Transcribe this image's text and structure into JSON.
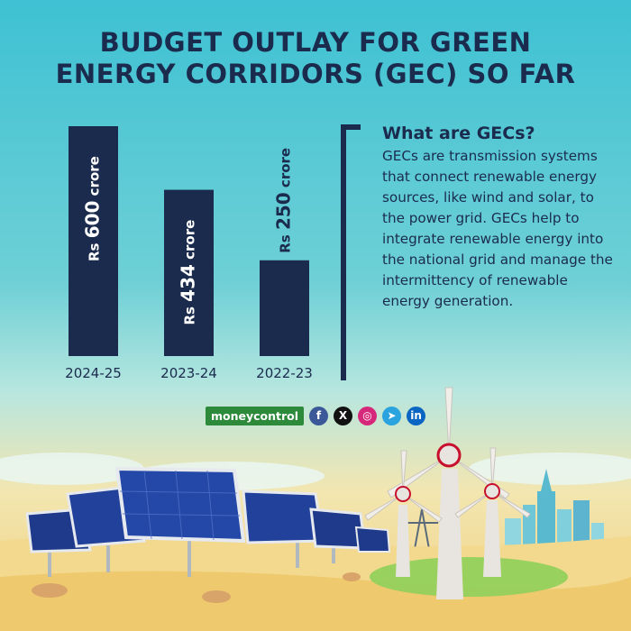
{
  "title_lines": [
    "BUDGET OUTLAY FOR GREEN",
    "ENERGY CORRIDORS (GEC) SO FAR"
  ],
  "chart_data": {
    "type": "bar",
    "categories": [
      "2024-25",
      "2023-24",
      "2022-23"
    ],
    "values": [
      600,
      434,
      250
    ],
    "value_labels": [
      "Rs 600 crore",
      "Rs 434 crore",
      "Rs 250 crore"
    ],
    "label_parts": [
      {
        "prefix": "Rs ",
        "number": "600",
        "suffix": " crore"
      },
      {
        "prefix": "Rs ",
        "number": "434",
        "suffix": " crore"
      },
      {
        "prefix": "Rs ",
        "number": "250",
        "suffix": " crore"
      }
    ],
    "bar_color": "#1b2b4d"
  },
  "info": {
    "heading": "What are GECs?",
    "body": "GECs are transmission systems that connect renewable energy sources, like wind and solar, to the power grid. GECs help to integrate renewable energy into the national grid and manage the intermittency of renewable energy generation."
  },
  "brand": {
    "logo_text": "moneycontrol",
    "social": [
      {
        "icon": "facebook-icon",
        "glyph": "f",
        "color": "#3b5998"
      },
      {
        "icon": "x-icon",
        "glyph": "X",
        "color": "#111111"
      },
      {
        "icon": "instagram-icon",
        "glyph": "◎",
        "color": "#d6287a"
      },
      {
        "icon": "telegram-icon",
        "glyph": "➤",
        "color": "#2aa3de"
      },
      {
        "icon": "linkedin-icon",
        "glyph": "in",
        "color": "#0a66c2"
      }
    ]
  },
  "colors": {
    "navy": "#1b2b4d",
    "sky": "#3ec1d3",
    "sand": "#f0cf7e"
  }
}
